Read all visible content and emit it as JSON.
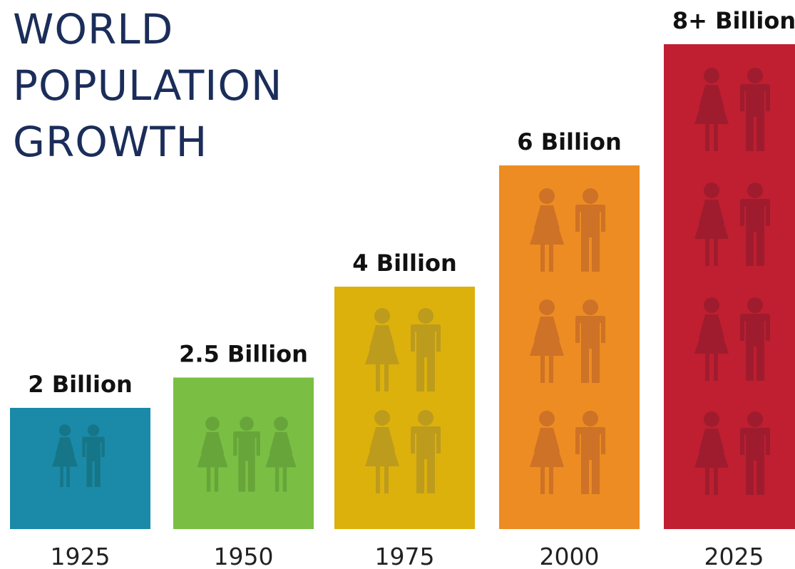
{
  "title_lines": [
    "WORLD",
    "POPULATION",
    "GROWTH"
  ],
  "chart_data": {
    "type": "bar",
    "title": "WORLD POPULATION GROWTH",
    "categories": [
      "1925",
      "1950",
      "1975",
      "2000",
      "2025"
    ],
    "values": [
      2,
      2.5,
      4,
      6,
      8
    ],
    "data_labels": [
      "2 Billion",
      "2.5 Billion",
      "4 Billion",
      "6 Billion",
      "8+ Billion"
    ],
    "unit": "Billion",
    "colors": [
      "#1a8aa8",
      "#7abf43",
      "#dcb10c",
      "#ec8c22",
      "#bf1f31"
    ],
    "icon_colors": [
      "#167688",
      "#67a53a",
      "#bd9b1d",
      "#cd7226",
      "#9f1c2e"
    ],
    "icon": "woman-and-man-icon",
    "ylim": [
      0,
      8.5
    ],
    "grid": false,
    "legend": "none",
    "xlabel": "",
    "ylabel": ""
  }
}
